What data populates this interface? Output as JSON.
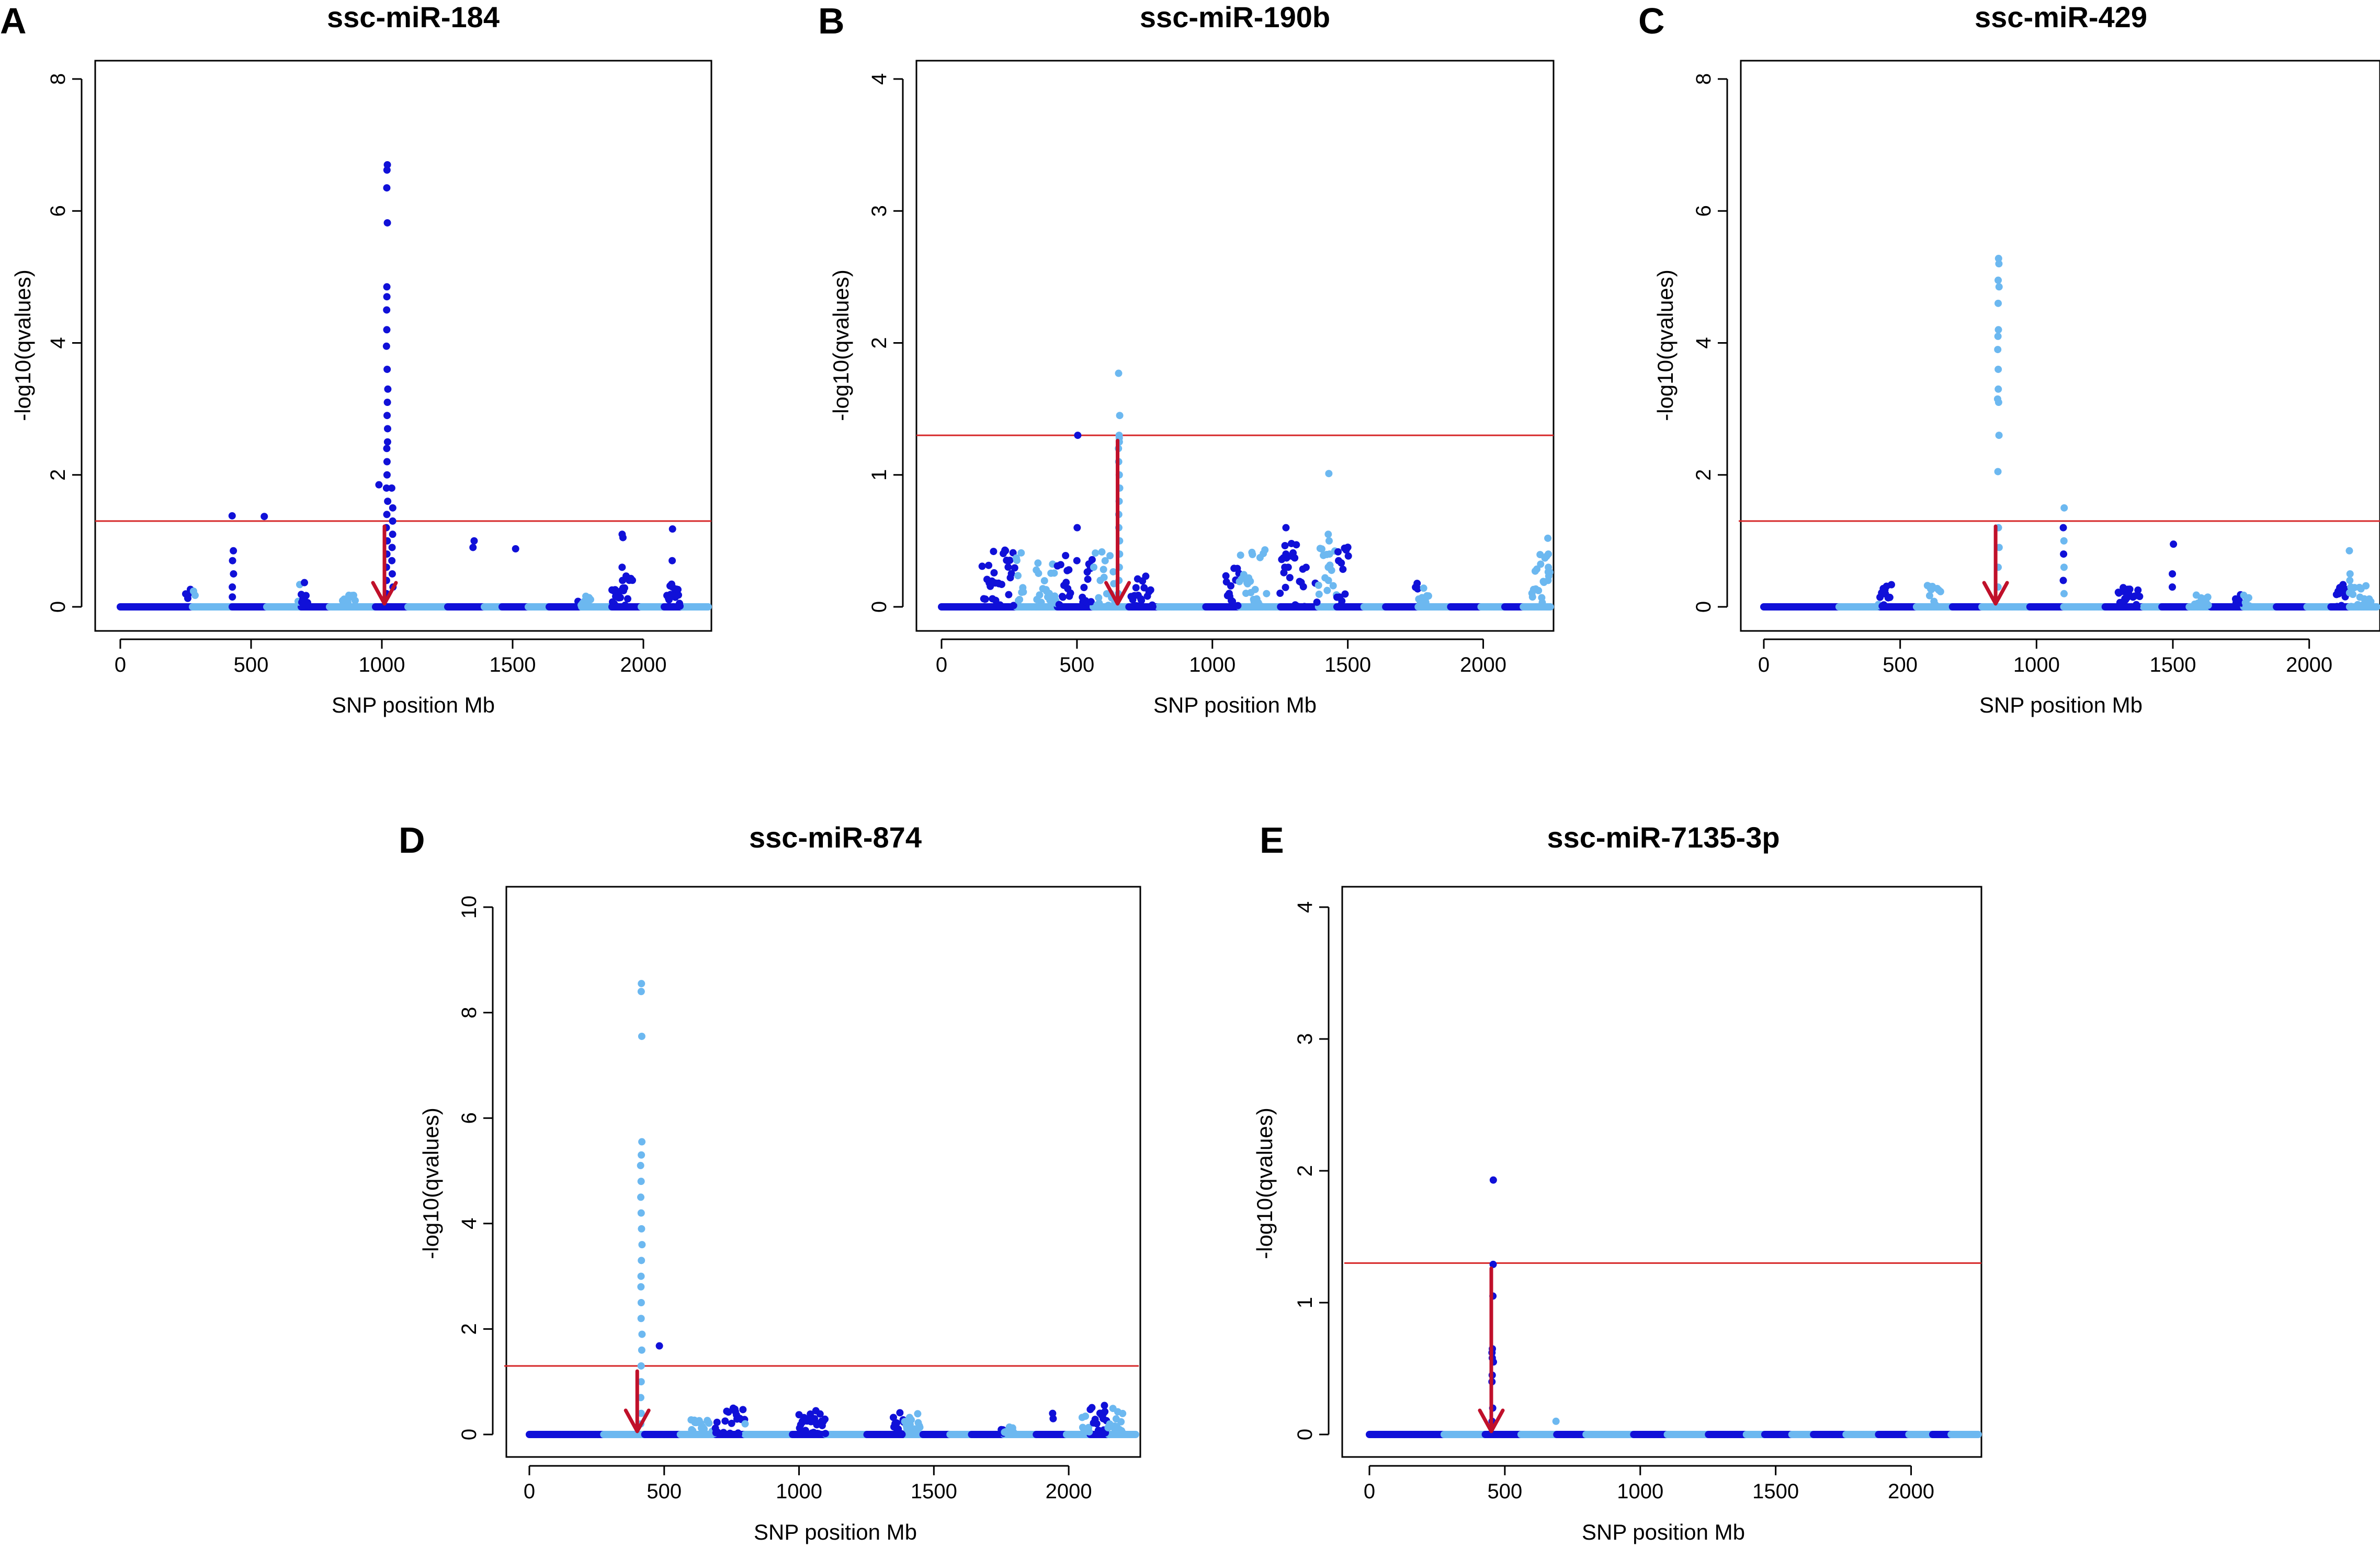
{
  "colors": {
    "chrom_dark": "#1010d8",
    "chrom_light": "#6cb8f0",
    "threshold": "#d62728",
    "arrow": "#c0102a"
  },
  "chart_data": [
    {
      "panel": "A",
      "type": "scatter",
      "title": "ssc-miR-184",
      "xlabel": "SNP position Mb",
      "ylabel": "-log10(qvalues)",
      "xlim": [
        0,
        2250
      ],
      "ylim": [
        0,
        8
      ],
      "xticks": [
        "0",
        "500",
        "1000",
        "1500",
        "2000"
      ],
      "xtick_values": [
        0,
        500,
        1000,
        1500,
        2000
      ],
      "yticks": [
        "0",
        "2",
        "4",
        "6",
        "8"
      ],
      "ytick_values": [
        0,
        2,
        4,
        6,
        8
      ],
      "threshold": 1.3,
      "arrow_x": 1010,
      "peaks": [
        {
          "x": 1020,
          "values": [
            6.7,
            6.62,
            6.35,
            5.82,
            4.85,
            4.7,
            4.5,
            4.2,
            3.95,
            3.6,
            3.3,
            3.1,
            2.9,
            2.7,
            2.5,
            2.4,
            2.2,
            2.0,
            1.8,
            1.6,
            1.4,
            1.2,
            1.0,
            0.8,
            0.6,
            0.4,
            0.2
          ]
        },
        {
          "x": 1040,
          "values": [
            1.8,
            1.5,
            1.3,
            1.1,
            0.9,
            0.7,
            0.5,
            0.3
          ]
        },
        {
          "x": 990,
          "values": [
            1.85
          ]
        },
        {
          "x": 430,
          "values": [
            1.38,
            0.85,
            0.7,
            0.5,
            0.3,
            0.15
          ]
        },
        {
          "x": 550,
          "values": [
            1.37
          ]
        },
        {
          "x": 1350,
          "values": [
            1.0,
            0.9
          ]
        },
        {
          "x": 1510,
          "values": [
            0.88
          ]
        },
        {
          "x": 1920,
          "values": [
            1.1,
            1.05,
            0.6,
            0.4
          ]
        },
        {
          "x": 2110,
          "values": [
            1.18,
            0.7,
            0.3
          ]
        }
      ],
      "noise": [
        {
          "x": [
            250,
            290
          ],
          "max": 0.3
        },
        {
          "x": [
            680,
            720
          ],
          "max": 0.4
        },
        {
          "x": [
            850,
            900
          ],
          "max": 0.25
        },
        {
          "x": [
            1750,
            1800
          ],
          "max": 0.2
        },
        {
          "x": [
            1880,
            1960
          ],
          "max": 0.5
        },
        {
          "x": [
            2090,
            2140
          ],
          "max": 0.4
        }
      ]
    },
    {
      "panel": "B",
      "type": "scatter",
      "title": "ssc-miR-190b",
      "xlabel": "SNP position Mb",
      "ylabel": "-log10(qvalues)",
      "xlim": [
        0,
        2250
      ],
      "ylim": [
        0,
        4
      ],
      "xticks": [
        "0",
        "500",
        "1000",
        "1500",
        "2000"
      ],
      "xtick_values": [
        0,
        500,
        1000,
        1500,
        2000
      ],
      "yticks": [
        "0",
        "1",
        "2",
        "3",
        "4"
      ],
      "ytick_values": [
        0,
        1,
        2,
        3,
        4
      ],
      "threshold": 1.3,
      "arrow_x": 650,
      "peaks": [
        {
          "x": 655,
          "values": [
            1.77,
            1.45,
            1.3,
            1.28,
            1.25,
            1.2,
            1.1,
            1.0,
            0.9,
            0.8,
            0.7,
            0.6,
            0.5,
            0.4,
            0.3,
            0.2,
            0.1
          ]
        },
        {
          "x": 500,
          "values": [
            1.3,
            0.6,
            0.35
          ]
        },
        {
          "x": 1430,
          "values": [
            1.01,
            0.55,
            0.5,
            0.4,
            0.3,
            0.2
          ]
        },
        {
          "x": 1270,
          "values": [
            0.6,
            0.4,
            0.3
          ]
        },
        {
          "x": 2240,
          "values": [
            0.52,
            0.4,
            0.3,
            0.2
          ]
        }
      ],
      "noise": [
        {
          "x": [
            150,
            300
          ],
          "max": 0.45
        },
        {
          "x": [
            350,
            480
          ],
          "max": 0.4
        },
        {
          "x": [
            520,
            640
          ],
          "max": 0.45
        },
        {
          "x": [
            700,
            780
          ],
          "max": 0.3
        },
        {
          "x": [
            1050,
            1200
          ],
          "max": 0.45
        },
        {
          "x": [
            1250,
            1350
          ],
          "max": 0.5
        },
        {
          "x": [
            1380,
            1500
          ],
          "max": 0.5
        },
        {
          "x": [
            1750,
            1800
          ],
          "max": 0.2
        },
        {
          "x": [
            2180,
            2250
          ],
          "max": 0.4
        }
      ]
    },
    {
      "panel": "C",
      "type": "scatter",
      "title": "ssc-miR-429",
      "xlabel": "SNP position Mb",
      "ylabel": "-log10(qvalues)",
      "xlim": [
        0,
        2250
      ],
      "ylim": [
        0,
        8
      ],
      "xticks": [
        "0",
        "500",
        "1000",
        "1500",
        "2000"
      ],
      "xtick_values": [
        0,
        500,
        1000,
        1500,
        2000
      ],
      "yticks": [
        "0",
        "2",
        "4",
        "6",
        "8"
      ],
      "ytick_values": [
        0,
        2,
        4,
        6,
        8
      ],
      "threshold": 1.3,
      "arrow_x": 850,
      "peaks": [
        {
          "x": 860,
          "values": [
            5.28,
            5.2,
            4.95,
            4.85,
            4.6,
            4.2,
            4.1,
            3.9,
            3.6,
            3.3,
            3.15,
            3.1,
            2.6,
            2.05,
            1.2,
            0.9,
            0.6,
            0.3
          ]
        },
        {
          "x": 1100,
          "values": [
            1.5,
            1.2,
            1.0,
            0.8,
            0.6,
            0.4,
            0.2
          ]
        },
        {
          "x": 1500,
          "values": [
            0.95,
            0.5,
            0.3
          ]
        },
        {
          "x": 2150,
          "values": [
            0.85,
            0.5,
            0.4,
            0.3
          ]
        }
      ],
      "noise": [
        {
          "x": [
            420,
            470
          ],
          "max": 0.4
        },
        {
          "x": [
            600,
            650
          ],
          "max": 0.35
        },
        {
          "x": [
            1300,
            1380
          ],
          "max": 0.3
        },
        {
          "x": [
            1580,
            1630
          ],
          "max": 0.25
        },
        {
          "x": [
            1730,
            1780
          ],
          "max": 0.2
        },
        {
          "x": [
            2100,
            2230
          ],
          "max": 0.4
        }
      ]
    },
    {
      "panel": "D",
      "type": "scatter",
      "title": "ssc-miR-874",
      "xlabel": "SNP position Mb",
      "ylabel": "-log10(qvalues)",
      "xlim": [
        0,
        2250
      ],
      "ylim": [
        0,
        10
      ],
      "xticks": [
        "0",
        "500",
        "1000",
        "1500",
        "2000"
      ],
      "xtick_values": [
        0,
        500,
        1000,
        1500,
        2000
      ],
      "yticks": [
        "0",
        "2",
        "4",
        "6",
        "8",
        "10"
      ],
      "ytick_values": [
        0,
        2,
        4,
        6,
        8,
        10
      ],
      "threshold": 1.3,
      "arrow_x": 400,
      "peaks": [
        {
          "x": 415,
          "values": [
            8.55,
            8.4,
            7.55,
            5.55,
            5.3,
            5.1,
            4.8,
            4.5,
            4.2,
            3.9,
            3.6,
            3.3,
            3.0,
            2.8,
            2.5,
            2.2,
            1.9,
            1.6,
            1.3,
            1.0,
            0.7,
            0.4,
            0.2
          ]
        },
        {
          "x": 480,
          "values": [
            1.68
          ]
        },
        {
          "x": 1060,
          "values": [
            0.45,
            0.3
          ]
        },
        {
          "x": 1940,
          "values": [
            0.4,
            0.3
          ]
        },
        {
          "x": 2130,
          "values": [
            0.55,
            0.4
          ]
        }
      ],
      "noise": [
        {
          "x": [
            600,
            700
          ],
          "max": 0.35
        },
        {
          "x": [
            720,
            800
          ],
          "max": 0.5
        },
        {
          "x": [
            1000,
            1100
          ],
          "max": 0.4
        },
        {
          "x": [
            1350,
            1450
          ],
          "max": 0.5
        },
        {
          "x": [
            1750,
            1800
          ],
          "max": 0.15
        },
        {
          "x": [
            2050,
            2200
          ],
          "max": 0.55
        }
      ]
    },
    {
      "panel": "E",
      "type": "scatter",
      "title": "ssc-miR-7135-3p",
      "xlabel": "SNP position Mb",
      "ylabel": "-log10(qvalues)",
      "xlim": [
        0,
        2250
      ],
      "ylim": [
        0,
        4
      ],
      "xticks": [
        "0",
        "500",
        "1000",
        "1500",
        "2000"
      ],
      "xtick_values": [
        0,
        500,
        1000,
        1500,
        2000
      ],
      "yticks": [
        "0",
        "1",
        "2",
        "3",
        "4"
      ],
      "ytick_values": [
        0,
        1,
        2,
        3,
        4
      ],
      "threshold": 1.3,
      "arrow_x": 450,
      "peaks": [
        {
          "x": 455,
          "values": [
            1.93,
            1.29,
            1.05,
            0.65,
            0.62,
            0.58,
            0.55,
            0.45,
            0.4,
            0.2,
            0.1
          ]
        },
        {
          "x": 690,
          "values": [
            0.1
          ]
        }
      ],
      "noise": []
    }
  ]
}
